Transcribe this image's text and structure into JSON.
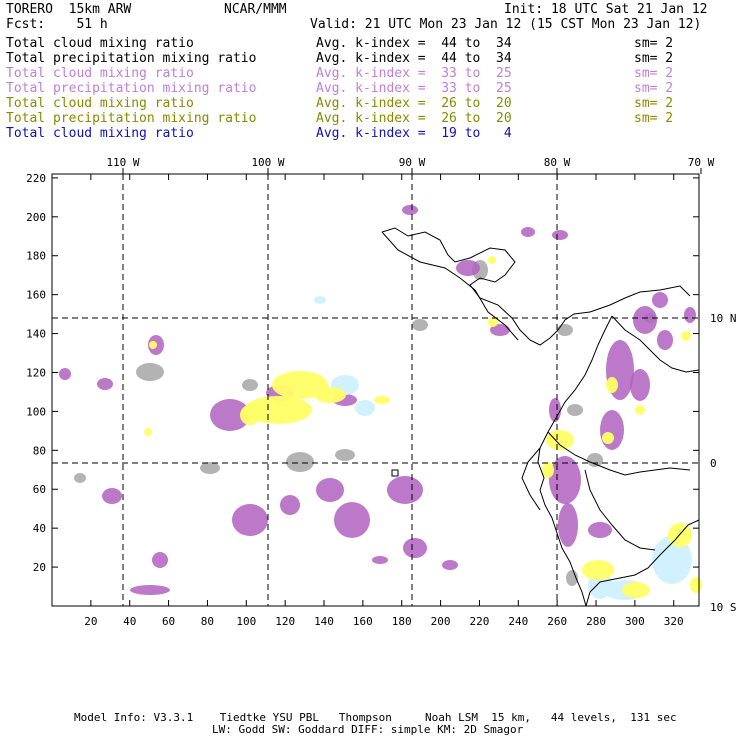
{
  "header": {
    "model": "TORERO  15km ARW",
    "fcst": "Fcst:    51 h",
    "center": "NCAR/MMM",
    "init": "Init: 18 UTC Sat 21 Jan 12",
    "valid": "Valid: 21 UTC Mon 23 Jan 12 (15 CST Mon 23 Jan 12)"
  },
  "fields": [
    {
      "label": "Total cloud mixing ratio",
      "avg": "Avg. k-index =  44 to  34",
      "sm": "sm= 2",
      "color": "#000000"
    },
    {
      "label": "Total precipitation mixing ratio",
      "avg": "Avg. k-index =  44 to  34",
      "sm": "sm= 2",
      "color": "#000000"
    },
    {
      "label": "Total cloud mixing ratio",
      "avg": "Avg. k-index =  33 to  25",
      "sm": "sm= 2",
      "color": "#c080d8"
    },
    {
      "label": "Total precipitation mixing ratio",
      "avg": "Avg. k-index =  33 to  25",
      "sm": "sm= 2",
      "color": "#c080d8"
    },
    {
      "label": "Total cloud mixing ratio",
      "avg": "Avg. k-index =  26 to  20",
      "sm": "sm= 2",
      "color": "#8a8a00"
    },
    {
      "label": "Total precipitation mixing ratio",
      "avg": "Avg. k-index =  26 to  20",
      "sm": "sm= 2",
      "color": "#8a8a00"
    },
    {
      "label": "Total cloud mixing ratio",
      "avg": "Avg. k-index =  19 to   4",
      "sm": "",
      "color": "#1010c0"
    }
  ],
  "map": {
    "lon_labels": [
      "110 W",
      "100 W",
      "90 W",
      "80 W",
      "70 W"
    ],
    "lat_labels": [
      "10 N",
      "0",
      "10 S"
    ],
    "x_ticks": [
      "20",
      "40",
      "60",
      "80",
      "100",
      "120",
      "140",
      "160",
      "180",
      "200",
      "220",
      "240",
      "260",
      "280",
      "300",
      "320"
    ],
    "y_ticks": [
      "20",
      "40",
      "60",
      "80",
      "100",
      "120",
      "140",
      "160",
      "180",
      "200",
      "220"
    ],
    "colors": {
      "gray": "#a6a6a6",
      "purple": "#b060c0",
      "yellow": "#ffff66",
      "lightblue": "#d0f0ff",
      "coast": "#000000"
    }
  },
  "footer": {
    "line1": "Model Info: V3.3.1    Tiedtke YSU PBL   Thompson     Noah LSM  15 km,   44 levels,  131 sec",
    "line2": "LW: Godd SW: Goddard DIFF: simple KM: 2D Smagor"
  }
}
